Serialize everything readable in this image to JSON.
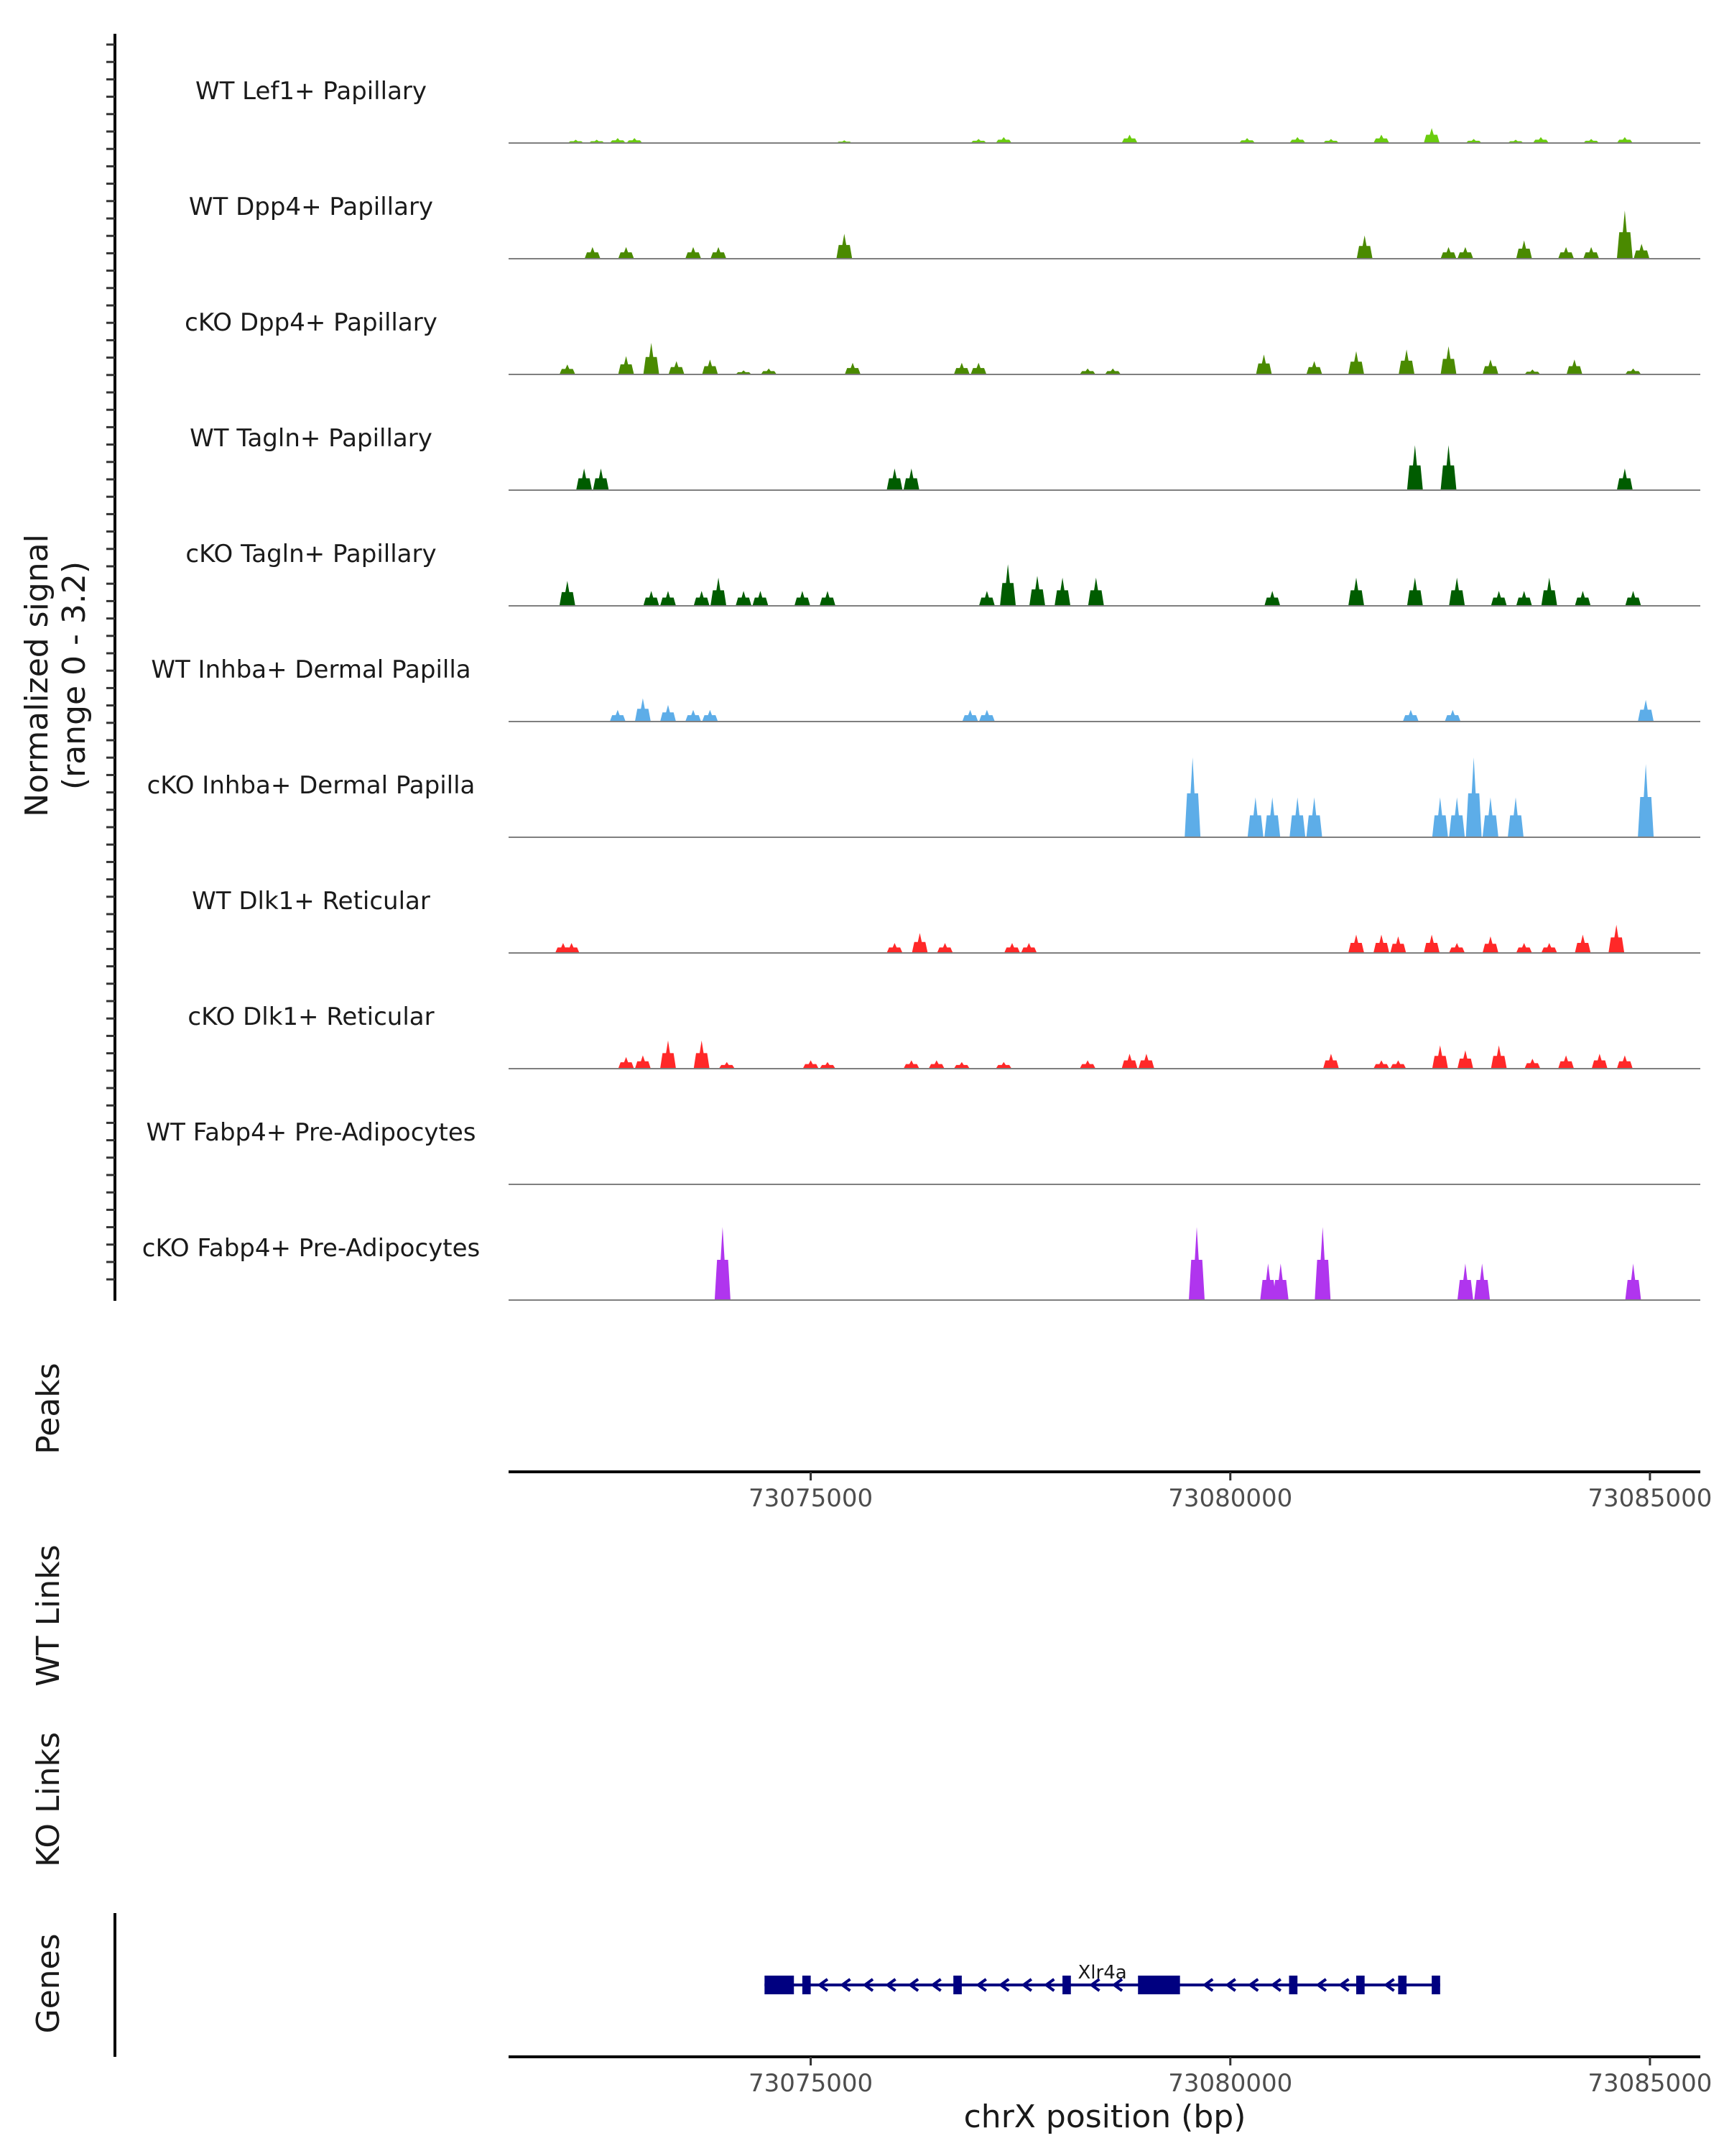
{
  "chart_data": {
    "type": "coverage",
    "signal_axis_label": [
      "Normalized signal",
      "(range 0 - 3.2)"
    ],
    "signal_range": [
      0,
      3.2
    ],
    "x_range": [
      73071400,
      73085600
    ],
    "x_ticks": [
      73075000,
      73080000,
      73085000
    ],
    "x_tick_labels": [
      "73075000",
      "73080000",
      "73085000"
    ],
    "xlabel": "chrX position (bp)",
    "panel_labels": {
      "peaks": "Peaks",
      "wt_links": "WT Links",
      "ko_links": "KO Links",
      "genes": "Genes"
    },
    "tracks": [
      {
        "name": "WT Lef1+ Papillary",
        "color": "#6ACC0E",
        "peaks": [
          [
            73072200,
            0.1
          ],
          [
            73072450,
            0.1
          ],
          [
            73072700,
            0.15
          ],
          [
            73072900,
            0.15
          ],
          [
            73075400,
            0.08
          ],
          [
            73077000,
            0.12
          ],
          [
            73077300,
            0.18
          ],
          [
            73078800,
            0.25
          ],
          [
            73080200,
            0.15
          ],
          [
            73080800,
            0.18
          ],
          [
            73081200,
            0.12
          ],
          [
            73081800,
            0.25
          ],
          [
            73082400,
            0.45
          ],
          [
            73082900,
            0.12
          ],
          [
            73083400,
            0.1
          ],
          [
            73083700,
            0.18
          ],
          [
            73084300,
            0.12
          ],
          [
            73084700,
            0.18
          ]
        ]
      },
      {
        "name": "WT Dpp4+ Papillary",
        "color": "#4A8A00",
        "peaks": [
          [
            73072400,
            0.35
          ],
          [
            73072800,
            0.35
          ],
          [
            73073600,
            0.35
          ],
          [
            73073900,
            0.35
          ],
          [
            73075400,
            0.75
          ],
          [
            73081600,
            0.7
          ],
          [
            73082600,
            0.35
          ],
          [
            73082800,
            0.35
          ],
          [
            73083500,
            0.55
          ],
          [
            73084000,
            0.35
          ],
          [
            73084300,
            0.35
          ],
          [
            73084700,
            1.45
          ],
          [
            73084900,
            0.45
          ]
        ]
      },
      {
        "name": "cKO Dpp4+ Papillary",
        "color": "#4A8A00",
        "peaks": [
          [
            73072100,
            0.3
          ],
          [
            73072800,
            0.55
          ],
          [
            73073100,
            0.95
          ],
          [
            73073400,
            0.4
          ],
          [
            73073800,
            0.45
          ],
          [
            73074200,
            0.12
          ],
          [
            73074500,
            0.18
          ],
          [
            73075500,
            0.35
          ],
          [
            73076800,
            0.35
          ],
          [
            73077000,
            0.35
          ],
          [
            73078300,
            0.18
          ],
          [
            73078600,
            0.18
          ],
          [
            73080400,
            0.6
          ],
          [
            73081000,
            0.4
          ],
          [
            73081500,
            0.7
          ],
          [
            73082100,
            0.75
          ],
          [
            73082600,
            0.85
          ],
          [
            73083100,
            0.45
          ],
          [
            73083600,
            0.15
          ],
          [
            73084100,
            0.45
          ],
          [
            73084800,
            0.18
          ]
        ]
      },
      {
        "name": "WT Tagln+ Papillary",
        "color": "#005C00",
        "peaks": [
          [
            73072300,
            0.65
          ],
          [
            73072500,
            0.65
          ],
          [
            73076000,
            0.65
          ],
          [
            73076200,
            0.65
          ],
          [
            73082200,
            1.35
          ],
          [
            73082600,
            1.35
          ],
          [
            73084700,
            0.65
          ]
        ]
      },
      {
        "name": "cKO Tagln+ Papillary",
        "color": "#005C00",
        "peaks": [
          [
            73072100,
            0.75
          ],
          [
            73073100,
            0.45
          ],
          [
            73073300,
            0.45
          ],
          [
            73073700,
            0.45
          ],
          [
            73073900,
            0.85
          ],
          [
            73074200,
            0.45
          ],
          [
            73074400,
            0.45
          ],
          [
            73074900,
            0.45
          ],
          [
            73075200,
            0.45
          ],
          [
            73077100,
            0.45
          ],
          [
            73077350,
            1.25
          ],
          [
            73077700,
            0.9
          ],
          [
            73078000,
            0.85
          ],
          [
            73078400,
            0.85
          ],
          [
            73080500,
            0.45
          ],
          [
            73081500,
            0.85
          ],
          [
            73082200,
            0.85
          ],
          [
            73082700,
            0.85
          ],
          [
            73083200,
            0.45
          ],
          [
            73083500,
            0.45
          ],
          [
            73083800,
            0.85
          ],
          [
            73084200,
            0.45
          ],
          [
            73084800,
            0.45
          ]
        ]
      },
      {
        "name": "WT Inhba+ Dermal Papilla",
        "color": "#5DADE8",
        "peaks": [
          [
            73072700,
            0.35
          ],
          [
            73073000,
            0.7
          ],
          [
            73073300,
            0.5
          ],
          [
            73073600,
            0.35
          ],
          [
            73073800,
            0.35
          ],
          [
            73076900,
            0.35
          ],
          [
            73077100,
            0.35
          ],
          [
            73082150,
            0.35
          ],
          [
            73082650,
            0.35
          ],
          [
            73084950,
            0.65
          ]
        ]
      },
      {
        "name": "cKO Inhba+ Dermal Papilla",
        "color": "#5DADE8",
        "peaks": [
          [
            73079550,
            2.4
          ],
          [
            73080300,
            1.2
          ],
          [
            73080500,
            1.2
          ],
          [
            73080800,
            1.2
          ],
          [
            73081000,
            1.2
          ],
          [
            73082500,
            1.2
          ],
          [
            73082700,
            1.2
          ],
          [
            73082900,
            2.4
          ],
          [
            73083100,
            1.2
          ],
          [
            73083400,
            1.2
          ],
          [
            73084950,
            2.2
          ]
        ]
      },
      {
        "name": "WT Dlk1+ Reticular",
        "color": "#FF2828",
        "peaks": [
          [
            73072050,
            0.3
          ],
          [
            73072150,
            0.3
          ],
          [
            73076000,
            0.3
          ],
          [
            73076300,
            0.6
          ],
          [
            73076600,
            0.3
          ],
          [
            73077400,
            0.3
          ],
          [
            73077600,
            0.3
          ],
          [
            73081500,
            0.55
          ],
          [
            73081800,
            0.55
          ],
          [
            73082000,
            0.5
          ],
          [
            73082400,
            0.55
          ],
          [
            73082700,
            0.3
          ],
          [
            73083100,
            0.5
          ],
          [
            73083500,
            0.3
          ],
          [
            73083800,
            0.3
          ],
          [
            73084200,
            0.55
          ],
          [
            73084600,
            0.85
          ]
        ]
      },
      {
        "name": "cKO Dlk1+ Reticular",
        "color": "#FF2828",
        "peaks": [
          [
            73072800,
            0.35
          ],
          [
            73073000,
            0.4
          ],
          [
            73073300,
            0.85
          ],
          [
            73073700,
            0.85
          ],
          [
            73074000,
            0.2
          ],
          [
            73075000,
            0.25
          ],
          [
            73075200,
            0.2
          ],
          [
            73076200,
            0.25
          ],
          [
            73076500,
            0.25
          ],
          [
            73076800,
            0.2
          ],
          [
            73077300,
            0.2
          ],
          [
            73078300,
            0.25
          ],
          [
            73078800,
            0.45
          ],
          [
            73079000,
            0.45
          ],
          [
            73081200,
            0.45
          ],
          [
            73081800,
            0.25
          ],
          [
            73082000,
            0.25
          ],
          [
            73082500,
            0.7
          ],
          [
            73082800,
            0.55
          ],
          [
            73083200,
            0.7
          ],
          [
            73083600,
            0.3
          ],
          [
            73084000,
            0.4
          ],
          [
            73084400,
            0.45
          ],
          [
            73084700,
            0.4
          ]
        ]
      },
      {
        "name": "WT Fabp4+ Pre-Adipocytes",
        "color": "#B035EE",
        "peaks": []
      },
      {
        "name": "cKO Fabp4+ Pre-Adipocytes",
        "color": "#B035EE",
        "peaks": [
          [
            73073950,
            2.2
          ],
          [
            73079600,
            2.2
          ],
          [
            73080450,
            1.1
          ],
          [
            73080600,
            1.1
          ],
          [
            73081100,
            2.2
          ],
          [
            73082800,
            1.1
          ],
          [
            73083000,
            1.1
          ],
          [
            73084800,
            1.1
          ]
        ]
      }
    ],
    "gene": {
      "name": "Xlr4a",
      "color": "#000080",
      "start": 73074450,
      "end": 73082500,
      "strand": "-",
      "exons": [
        [
          73074450,
          73074800
        ],
        [
          73074900,
          73075000
        ],
        [
          73076700,
          73076800
        ],
        [
          73078000,
          73078100
        ],
        [
          73078900,
          73079400
        ],
        [
          73080700,
          73080800
        ],
        [
          73081500,
          73081600
        ],
        [
          73082000,
          73082100
        ],
        [
          73082400,
          73082500
        ]
      ]
    }
  }
}
